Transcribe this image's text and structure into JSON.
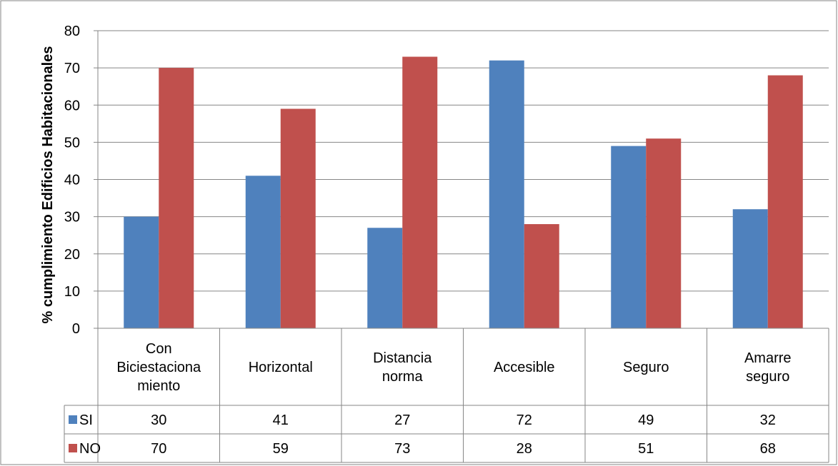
{
  "chart_data": {
    "type": "bar",
    "title": "",
    "xlabel": "",
    "ylabel": "% cumplimiento Edificios Habitacionales",
    "ylim": [
      0,
      80
    ],
    "yticks": [
      0,
      10,
      20,
      30,
      40,
      50,
      60,
      70,
      80
    ],
    "grid": true,
    "legend": "data-table",
    "categories": [
      [
        "Con",
        "Biciestaciona",
        "miento"
      ],
      [
        "Horizontal"
      ],
      [
        "Distancia",
        "norma"
      ],
      [
        "Accesible"
      ],
      [
        "Seguro"
      ],
      [
        "Amarre",
        "seguro"
      ]
    ],
    "series": [
      {
        "name": "SI",
        "color": "#4f81bd",
        "values": [
          30,
          41,
          27,
          72,
          49,
          32
        ]
      },
      {
        "name": "NO",
        "color": "#c0504d",
        "values": [
          70,
          59,
          73,
          28,
          51,
          68
        ]
      }
    ]
  }
}
